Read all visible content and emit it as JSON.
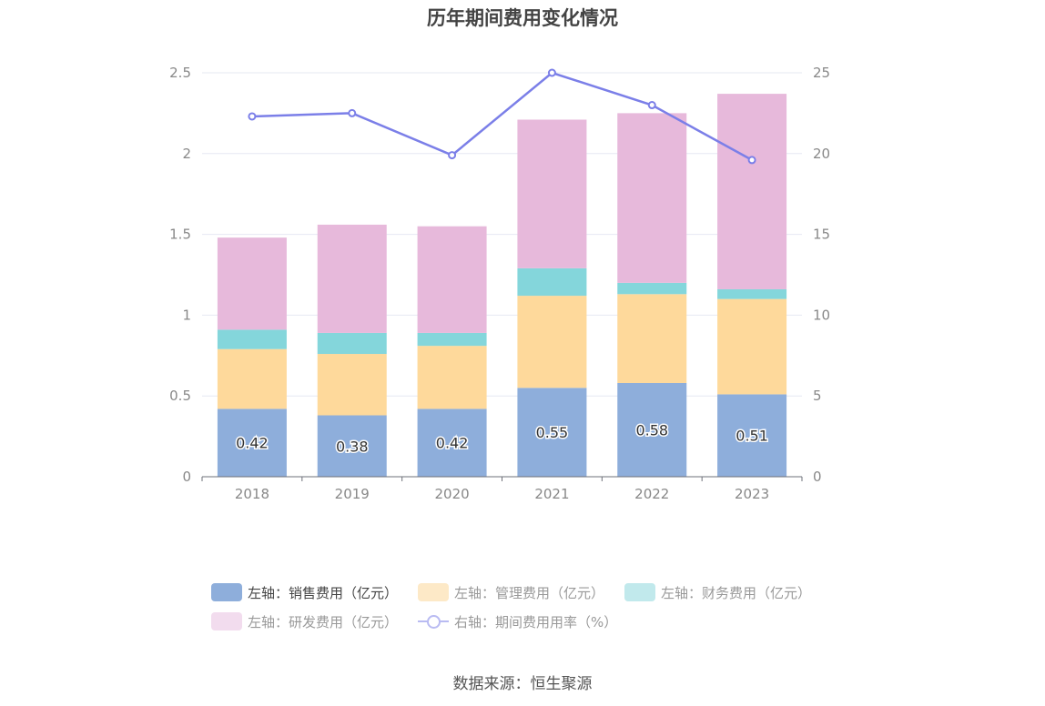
{
  "chart_data": {
    "type": "bar",
    "title": "历年期间费用变化情况",
    "categories": [
      "2018",
      "2019",
      "2020",
      "2021",
      "2022",
      "2023"
    ],
    "stacked": true,
    "y_left": {
      "ylim": [
        0,
        2.5
      ],
      "ticks": [
        "0",
        "0.5",
        "1",
        "1.5",
        "2",
        "2.5"
      ]
    },
    "y_right": {
      "ylim": [
        0,
        25
      ],
      "ticks": [
        "0",
        "5",
        "10",
        "15",
        "20",
        "25"
      ]
    },
    "grid": true,
    "legend_position": "bottom",
    "series": [
      {
        "name": "左轴：销售费用（亿元）",
        "type": "bar",
        "axis": "left",
        "color": "#8eaedb",
        "values": [
          0.42,
          0.38,
          0.42,
          0.55,
          0.58,
          0.51
        ],
        "show_labels": true,
        "labels": [
          "0.42",
          "0.38",
          "0.42",
          "0.55",
          "0.58",
          "0.51"
        ]
      },
      {
        "name": "左轴：管理费用（亿元）",
        "type": "bar",
        "axis": "left",
        "color": "#fed99b",
        "values": [
          0.37,
          0.38,
          0.39,
          0.57,
          0.55,
          0.59
        ]
      },
      {
        "name": "左轴：财务费用（亿元）",
        "type": "bar",
        "axis": "left",
        "color": "#84d6db",
        "values": [
          0.12,
          0.13,
          0.08,
          0.17,
          0.07,
          0.06
        ]
      },
      {
        "name": "左轴：研发费用（亿元）",
        "type": "bar",
        "axis": "left",
        "color": "#e7b9db",
        "values": [
          0.57,
          0.67,
          0.66,
          0.92,
          1.05,
          1.21
        ]
      },
      {
        "name": "右轴：期间费用用率（%）",
        "type": "line",
        "axis": "right",
        "color": "#7b7fe8",
        "values": [
          22.3,
          22.5,
          19.9,
          25.0,
          23.0,
          19.6
        ]
      }
    ]
  },
  "legend_legend_colors": {
    "sales": "#8eaedb",
    "admin": "#fde9c7",
    "finance": "#c1e9ec",
    "rd": "#f2dcee",
    "rate": "#7b7fe8"
  },
  "source": "数据来源：恒生聚源"
}
